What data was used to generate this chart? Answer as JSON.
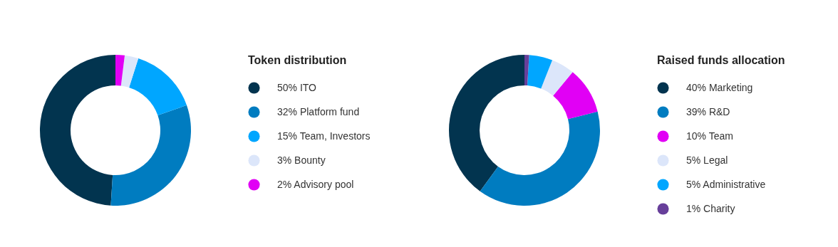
{
  "chart_data": [
    {
      "type": "donut",
      "legend_title": "Token distribution",
      "legend": "right",
      "categories": [
        "50% ITO",
        "32% Platform fund",
        "15% Team, Investors",
        "3% Bounty",
        "2% Advisory pool"
      ],
      "values": [
        50,
        32,
        15,
        3,
        2
      ],
      "colors": [
        "#02344f",
        "#007cc0",
        "#00a6ff",
        "#dce6fa",
        "#e100f5"
      ]
    },
    {
      "type": "donut",
      "legend_title": "Raised funds allocation",
      "legend": "right",
      "categories": [
        "40% Marketing",
        "39% R&D",
        "10% Team",
        "5% Legal",
        "5% Administrative",
        "1% Charity"
      ],
      "values": [
        40,
        39,
        10,
        5,
        5,
        1
      ],
      "colors": [
        "#02344f",
        "#007cc0",
        "#e100f5",
        "#dce6fa",
        "#00a6ff",
        "#673f9a"
      ]
    }
  ]
}
